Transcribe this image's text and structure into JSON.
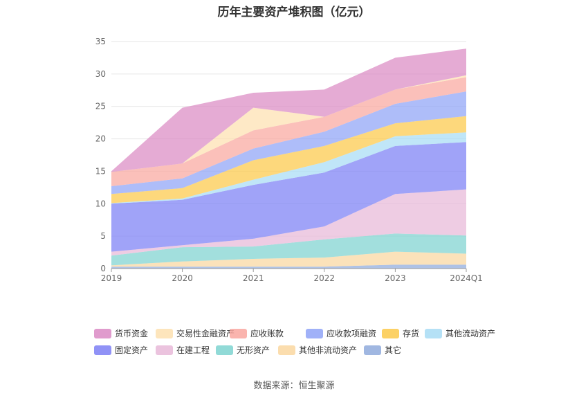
{
  "chart_data": {
    "type": "area",
    "stacked": true,
    "title": "历年主要资产堆积图（亿元）",
    "xlabel": "",
    "ylabel": "",
    "ylim": [
      0,
      35
    ],
    "yticks": [
      0,
      5,
      10,
      15,
      20,
      25,
      30,
      35
    ],
    "grid": true,
    "categories": [
      "2019",
      "2020",
      "2021",
      "2022",
      "2023",
      "2024Q1"
    ],
    "legend_position": "bottom",
    "series": [
      {
        "name": "其它",
        "color": "#8faadc",
        "values": [
          0.3,
          0.3,
          0.3,
          0.3,
          0.6,
          0.6
        ]
      },
      {
        "name": "其他非流动资产",
        "color": "#fad7a0",
        "values": [
          0.2,
          0.8,
          1.2,
          1.4,
          2.0,
          1.7
        ]
      },
      {
        "name": "无形资产",
        "color": "#7ed3d0",
        "values": [
          1.5,
          2.2,
          1.9,
          2.8,
          2.8,
          2.8
        ]
      },
      {
        "name": "在建工程",
        "color": "#e8b8d8",
        "values": [
          0.6,
          0.3,
          1.2,
          2.0,
          6.1,
          7.1
        ]
      },
      {
        "name": "固定资产",
        "color": "#7c7ff5",
        "values": [
          7.4,
          7.0,
          8.3,
          8.3,
          7.4,
          7.3
        ]
      },
      {
        "name": "其他流动资产",
        "color": "#a8dcf5",
        "values": [
          0.1,
          0.2,
          0.8,
          1.6,
          1.5,
          1.5
        ]
      },
      {
        "name": "存货",
        "color": "#fcc94a",
        "values": [
          1.4,
          1.6,
          3.0,
          2.5,
          2.0,
          2.5
        ]
      },
      {
        "name": "应收款项融资",
        "color": "#8fa3f7",
        "values": [
          1.2,
          1.5,
          1.8,
          2.2,
          3.0,
          3.8
        ]
      },
      {
        "name": "应收账款",
        "color": "#f9a7a0",
        "values": [
          2.2,
          2.3,
          2.8,
          2.3,
          2.2,
          2.2
        ]
      },
      {
        "name": "交易性金融资产",
        "color": "#fde0b0",
        "values": [
          0.0,
          0.0,
          3.5,
          0.0,
          0.0,
          0.3
        ]
      },
      {
        "name": "货币资金",
        "color": "#db8ac4",
        "values": [
          0.1,
          8.6,
          2.3,
          4.2,
          4.9,
          4.1
        ]
      }
    ],
    "legend_order": [
      "货币资金",
      "交易性金融资产",
      "应收账款",
      "应收款项融资",
      "存货",
      "其他流动资产",
      "固定资产",
      "在建工程",
      "无形资产",
      "其他非流动资产",
      "其它"
    ]
  },
  "source": "数据来源：恒生聚源"
}
